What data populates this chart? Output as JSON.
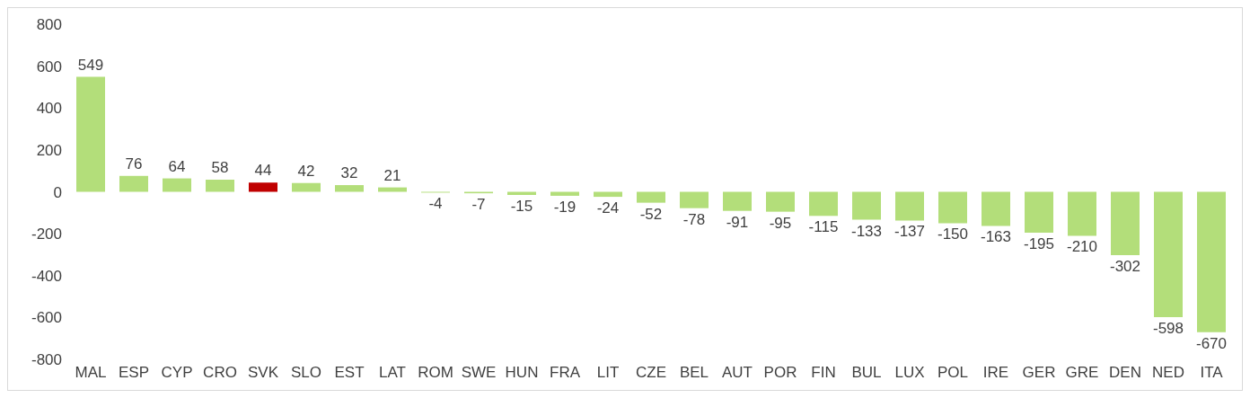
{
  "chart_data": {
    "type": "bar",
    "categories": [
      "MAL",
      "ESP",
      "CYP",
      "CRO",
      "SVK",
      "SLO",
      "EST",
      "LAT",
      "ROM",
      "SWE",
      "HUN",
      "FRA",
      "LIT",
      "CZE",
      "BEL",
      "AUT",
      "POR",
      "FIN",
      "BUL",
      "LUX",
      "POL",
      "IRE",
      "GER",
      "GRE",
      "DEN",
      "NED",
      "ITA"
    ],
    "values": [
      549,
      76,
      64,
      58,
      44,
      42,
      32,
      21,
      -4,
      -7,
      -15,
      -19,
      -24,
      -52,
      -78,
      -91,
      -95,
      -115,
      -133,
      -137,
      -150,
      -163,
      -195,
      -210,
      -302,
      -598,
      -670
    ],
    "colors": [
      "#b3de7a",
      "#b3de7a",
      "#b3de7a",
      "#b3de7a",
      "#c00000",
      "#b3de7a",
      "#b3de7a",
      "#b3de7a",
      "#b3de7a",
      "#b3de7a",
      "#b3de7a",
      "#b3de7a",
      "#b3de7a",
      "#b3de7a",
      "#b3de7a",
      "#b3de7a",
      "#b3de7a",
      "#b3de7a",
      "#b3de7a",
      "#b3de7a",
      "#b3de7a",
      "#b3de7a",
      "#b3de7a",
      "#b3de7a",
      "#b3de7a",
      "#b3de7a",
      "#b3de7a"
    ],
    "ylim": [
      -800,
      800
    ],
    "yticks": [
      -800,
      -600,
      -400,
      -200,
      0,
      200,
      400,
      600,
      800
    ],
    "data_labels": true,
    "grid": false
  }
}
